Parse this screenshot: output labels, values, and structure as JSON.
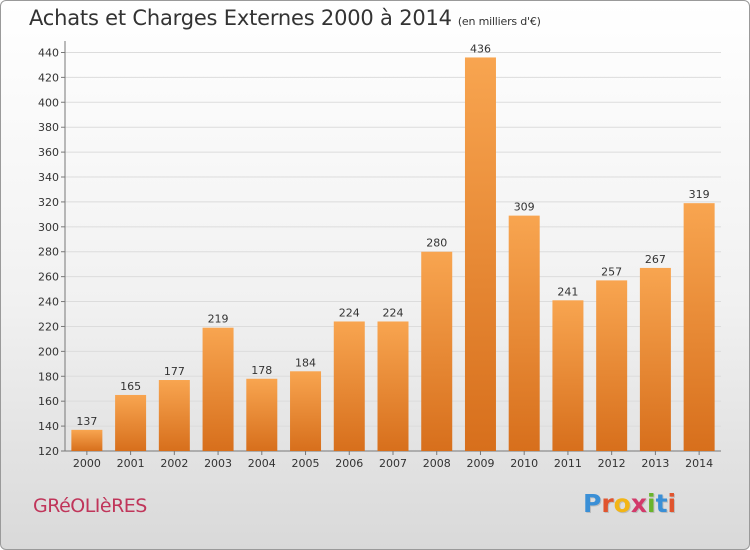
{
  "title": "Achats et Charges Externes 2000 à 2014",
  "unit": "(en milliers d'€)",
  "commune": "GRéOLIèRES",
  "logo": {
    "text": "Proxiti",
    "letters": [
      "P",
      "r",
      "o",
      "x",
      "i",
      "t",
      "i"
    ],
    "colors": [
      "#3a8fd6",
      "#e0542e",
      "#f2b516",
      "#d23a6a",
      "#6ab42c",
      "#3a8fd6",
      "#e0542e"
    ]
  },
  "colors": {
    "bar_top": "#f8a550",
    "bar_bottom": "#d76f1c",
    "grid": "#dcdcdc",
    "title": "#333333",
    "commune": "#c0355a"
  },
  "chart_data": {
    "type": "bar",
    "title": "Achats et Charges Externes 2000 à 2014",
    "subtitle": "(en milliers d'€)",
    "categories": [
      "2000",
      "2001",
      "2002",
      "2003",
      "2004",
      "2005",
      "2006",
      "2007",
      "2008",
      "2009",
      "2010",
      "2011",
      "2012",
      "2013",
      "2014"
    ],
    "values": [
      137,
      165,
      177,
      219,
      178,
      184,
      224,
      224,
      280,
      436,
      309,
      241,
      257,
      267,
      319
    ],
    "yticks": [
      120,
      140,
      160,
      180,
      200,
      220,
      240,
      260,
      280,
      300,
      320,
      340,
      360,
      380,
      400,
      420,
      440
    ],
    "ylim": [
      120,
      446
    ],
    "grid": true,
    "data_labels": true
  }
}
